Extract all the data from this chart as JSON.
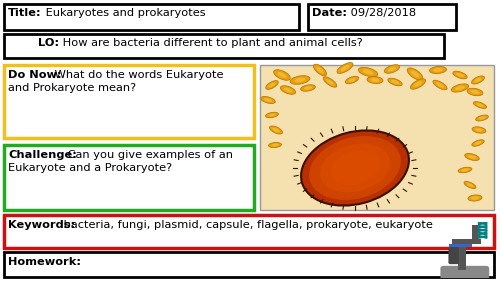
{
  "bg_color": "#ffffff",
  "title_bold": "Title:",
  "title_normal": " Eukaryotes and prokaryotes",
  "date_bold": "Date:",
  "date_normal": " 09/28/2018",
  "lo_bold": "LO:",
  "lo_normal": " How are bacteria different to plant and animal cells?",
  "donow_bold": "Do Now:",
  "donow_line1": " What do the words Eukaryote",
  "donow_line2": "and Prokaryote mean?",
  "challenge_bold": "Challenge:",
  "challenge_line1": " Can you give examples of an",
  "challenge_line2": "Eukaryote and a Prokaryote?",
  "keywords_bold": "Keywords:",
  "keywords_normal": " bacteria, fungi, plasmid, capsule, flagella, prokaryote, eukaryote",
  "homework_bold": "Homework:",
  "col_black": "#000000",
  "col_yellow": "#f0c020",
  "col_green": "#22aa22",
  "col_red": "#cc1111",
  "col_wheat": "#f5e0b0",
  "col_orange_dark": "#b83000",
  "col_orange_mid": "#e05000",
  "col_orange_lite": "#f08000",
  "col_yellow_bac": "#e8a010",
  "col_bac_edge": "#c07800"
}
